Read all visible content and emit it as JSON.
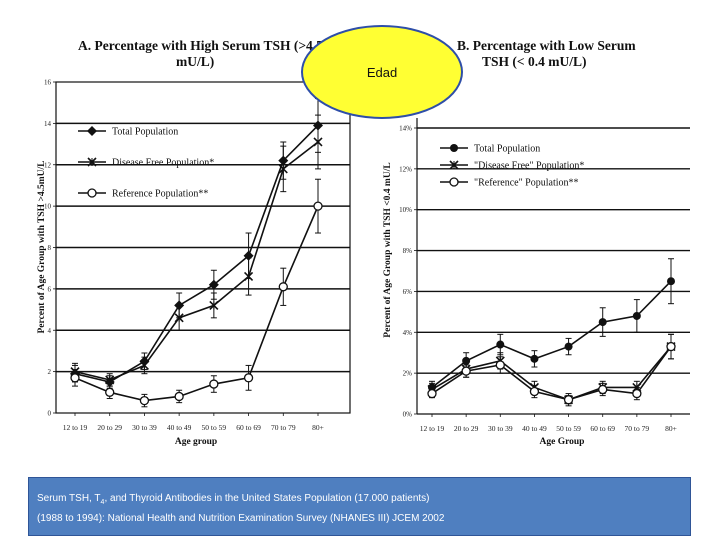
{
  "annotation": {
    "label": "Edad",
    "fill": "#ffff33",
    "stroke": "#2e4ea8"
  },
  "caption": {
    "line1_prefix": "Serum TSH, T",
    "line1_sub": "4",
    "line1_suffix": ", and Thyroid Antibodies in the United States Population (17.000 patients)",
    "line2": "(1988 to 1994): National Health and Nutrition Examination Survey (NHANES III) JCEM 2002",
    "background": "#4f7fc0"
  },
  "chart_data": [
    {
      "type": "line",
      "title_line1": "A.  Percentage with High Serum TSH (>4.5",
      "title_line2": "mU/L)",
      "xlabel": "Age group",
      "ylabel": "Percent of Age Group with TSH >4.5mU/L",
      "ylim": [
        0,
        16
      ],
      "yticks": [
        "0",
        "2",
        "4",
        "6",
        "8",
        "10",
        "12",
        "14",
        "16"
      ],
      "categories": [
        "12 to 19",
        "20 to 29",
        "30 to 39",
        "40 to 49",
        "50 to 59",
        "60 to 69",
        "70 to 79",
        "80+"
      ],
      "series": [
        {
          "name": "Total Population",
          "marker": "diamond",
          "values": [
            1.9,
            1.5,
            2.5,
            5.2,
            6.2,
            7.6,
            12.2,
            13.9
          ],
          "errors": [
            0.4,
            0.3,
            0.4,
            0.6,
            0.7,
            1.1,
            0.9,
            1.3
          ]
        },
        {
          "name": "Disease Free Population*",
          "marker": "x",
          "values": [
            2.0,
            1.6,
            2.3,
            4.6,
            5.2,
            6.6,
            11.8,
            13.1
          ],
          "errors": [
            0.4,
            0.3,
            0.4,
            0.6,
            0.6,
            0.9,
            1.1,
            1.3
          ]
        },
        {
          "name": "Reference Population**",
          "marker": "circle",
          "values": [
            1.7,
            1.0,
            0.6,
            0.8,
            1.4,
            1.7,
            6.1,
            10.0
          ],
          "errors": [
            0.4,
            0.3,
            0.3,
            0.3,
            0.4,
            0.6,
            0.9,
            1.3
          ]
        }
      ]
    },
    {
      "type": "line",
      "title_line1": "B.  Percentage with Low Serum",
      "title_line2": "TSH (< 0.4 mU/L)",
      "xlabel": "Age Group",
      "ylabel": "Percent of Age Group with TSH <0.4 mU/L",
      "ylim": [
        0,
        14
      ],
      "yticks": [
        "0%",
        "2%",
        "4%",
        "6%",
        "8%",
        "10%",
        "12%",
        "14%"
      ],
      "categories": [
        "12 to 19",
        "20 to 29",
        "30 to 39",
        "40 to 49",
        "50 to 59",
        "60 to 69",
        "70 to 79",
        "80+"
      ],
      "series": [
        {
          "name": "Total Population",
          "marker": "circle-filled",
          "values": [
            1.3,
            2.6,
            3.4,
            2.7,
            3.3,
            4.5,
            4.8,
            6.5
          ],
          "errors": [
            0.3,
            0.4,
            0.5,
            0.4,
            0.4,
            0.7,
            0.8,
            1.1
          ]
        },
        {
          "name": "\"Disease Free\" Population*",
          "marker": "x",
          "values": [
            1.2,
            2.2,
            2.6,
            1.3,
            0.7,
            1.3,
            1.3,
            3.3
          ],
          "errors": [
            0.3,
            0.4,
            0.4,
            0.3,
            0.3,
            0.3,
            0.3,
            0.6
          ]
        },
        {
          "name": "\"Reference\" Population**",
          "marker": "circle",
          "values": [
            1.0,
            2.1,
            2.4,
            1.1,
            0.7,
            1.2,
            1.0,
            3.3
          ],
          "errors": [
            0.2,
            0.3,
            0.4,
            0.3,
            0.2,
            0.3,
            0.3,
            0.6
          ]
        }
      ]
    }
  ]
}
